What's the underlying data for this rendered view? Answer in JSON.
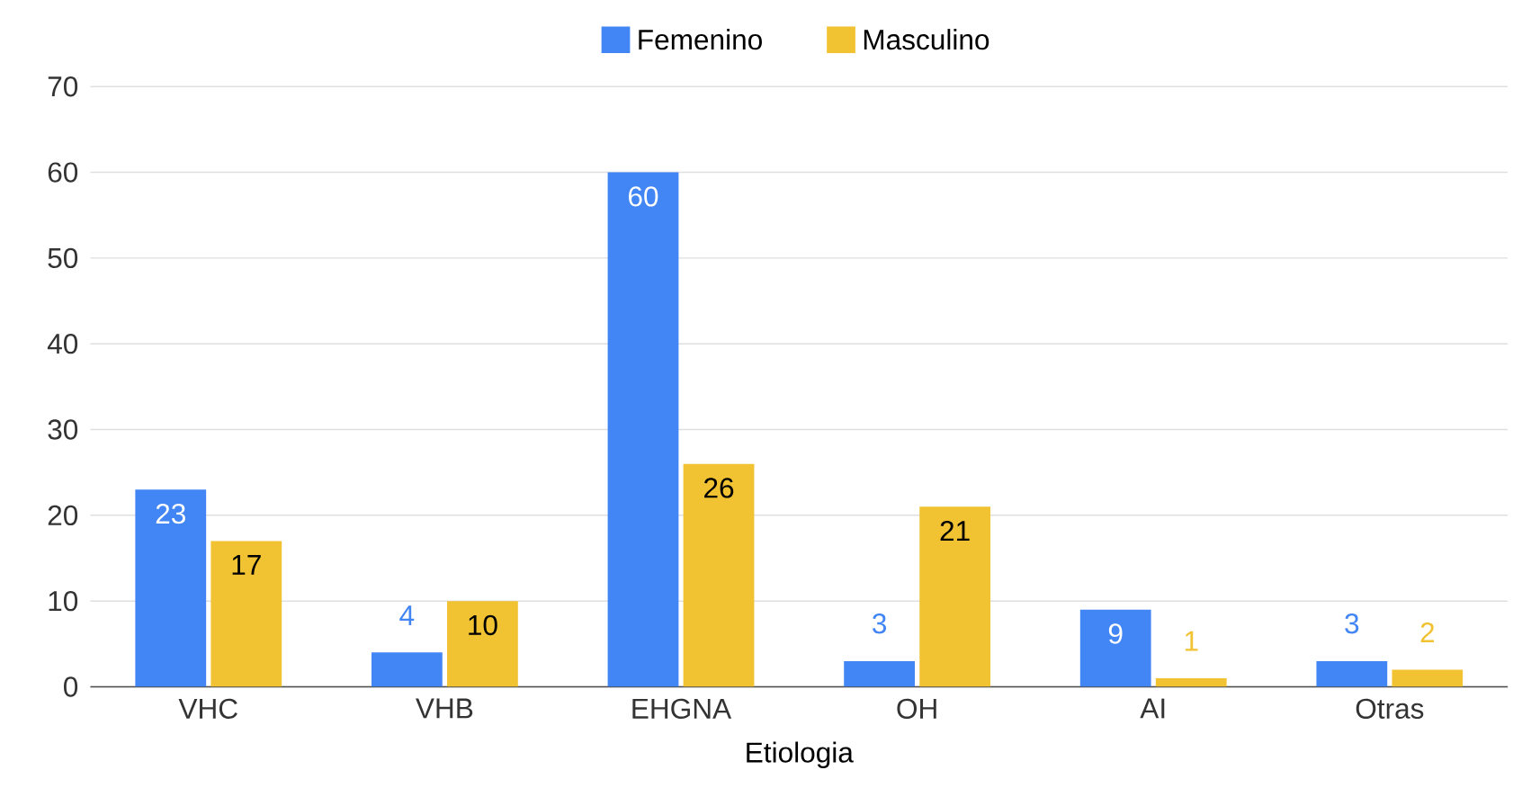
{
  "chart_data": {
    "type": "bar",
    "xlabel": "Etiologia",
    "categories": [
      "VHC",
      "VHB",
      "EHGNA",
      "OH",
      "AI",
      "Otras"
    ],
    "series": [
      {
        "name": "Femenino",
        "color": "#4285f4",
        "values": [
          23,
          4,
          60,
          3,
          9,
          3
        ]
      },
      {
        "name": "Masculino",
        "color": "#f1c232",
        "values": [
          17,
          10,
          26,
          21,
          1,
          2
        ]
      }
    ],
    "ylim": [
      0,
      70
    ],
    "yticks": [
      0,
      10,
      20,
      30,
      40,
      50,
      60,
      70
    ],
    "grid": "y",
    "legend": "top",
    "data_labels": true
  }
}
